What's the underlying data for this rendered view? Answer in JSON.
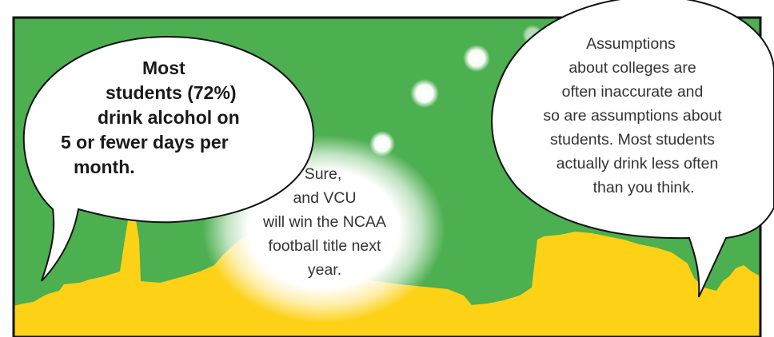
{
  "colors": {
    "sky_green": "#4caf50",
    "ground_yellow": "#fcd116",
    "bubble_white": "#ffffff",
    "outline_black": "#111111",
    "text_dark": "#1a1a1a"
  },
  "speech_left": {
    "lines": [
      "Most",
      "students (72%)",
      "drink alcohol on",
      "5 or fewer days per",
      "month."
    ]
  },
  "thought_middle": {
    "lines": [
      "Sure,",
      "and VCU",
      "will win the NCAA",
      "football title next",
      "year."
    ]
  },
  "speech_right": {
    "lines": [
      "Assumptions",
      "about colleges are",
      "often inaccurate and",
      "so are assumptions about",
      "students. Most students",
      "actually drink less often",
      "than you think."
    ]
  }
}
